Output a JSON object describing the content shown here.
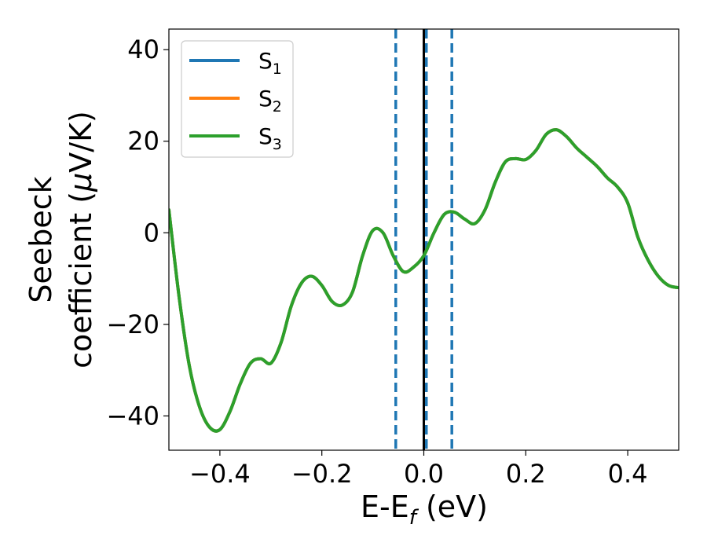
{
  "chart_data": {
    "type": "line",
    "title": "",
    "xlabel": {
      "main": "E-E",
      "sub": "f",
      "unit": " (eV)"
    },
    "ylabel": {
      "line1": "Seebeck",
      "line2_pre": "coefficient  (",
      "mu": "μ",
      "line2_post": "V/K)"
    },
    "xlim": [
      -0.5,
      0.5
    ],
    "ylim": [
      -47.5,
      44.5
    ],
    "xticks": [
      -0.4,
      -0.2,
      0.0,
      0.2,
      0.4
    ],
    "xtick_labels": [
      "−0.4",
      "−0.2",
      "0.0",
      "0.2",
      "0.4"
    ],
    "yticks": [
      -40,
      -20,
      0,
      20,
      40
    ],
    "ytick_labels": [
      "−40",
      "−20",
      "0",
      "20",
      "40"
    ],
    "grid": false,
    "legend_position": "top-left",
    "vlines": [
      {
        "x": -0.055,
        "style": "dashed",
        "color": "#1f77b4"
      },
      {
        "x": 0.055,
        "style": "dashed",
        "color": "#1f77b4"
      },
      {
        "x": 0.005,
        "style": "dashed",
        "color": "#1f77b4"
      },
      {
        "x": 0.0,
        "style": "solid",
        "color": "#000000"
      }
    ],
    "x": [
      -0.5,
      -0.48,
      -0.46,
      -0.44,
      -0.42,
      -0.4,
      -0.38,
      -0.36,
      -0.34,
      -0.32,
      -0.3,
      -0.28,
      -0.26,
      -0.24,
      -0.22,
      -0.2,
      -0.18,
      -0.16,
      -0.14,
      -0.12,
      -0.1,
      -0.08,
      -0.06,
      -0.04,
      -0.02,
      0.0,
      0.02,
      0.04,
      0.06,
      0.08,
      0.1,
      0.12,
      0.14,
      0.16,
      0.18,
      0.2,
      0.22,
      0.24,
      0.26,
      0.28,
      0.3,
      0.32,
      0.34,
      0.36,
      0.38,
      0.4,
      0.42,
      0.44,
      0.46,
      0.48,
      0.5
    ],
    "series": [
      {
        "name": "S",
        "sub": "1",
        "color": "#1f77b4",
        "values": [
          5,
          -14,
          -29,
          -38,
          -42.5,
          -43,
          -39,
          -33,
          -28.5,
          -27.5,
          -28.5,
          -24,
          -16,
          -11,
          -9.5,
          -11.5,
          -15,
          -15.8,
          -13,
          -5,
          0.5,
          0,
          -5,
          -8.5,
          -7.5,
          -5,
          0,
          4,
          4.5,
          3,
          2,
          5,
          11,
          15.5,
          16.2,
          16,
          18,
          21.5,
          22.5,
          21,
          18.5,
          16.5,
          14.5,
          12,
          10,
          6.5,
          -1,
          -6,
          -9.5,
          -11.5,
          -12
        ]
      },
      {
        "name": "S",
        "sub": "2",
        "color": "#ff7f0e",
        "values": [
          5,
          -14,
          -29,
          -38,
          -42.5,
          -43,
          -39,
          -33,
          -28.5,
          -27.5,
          -28.5,
          -24,
          -16,
          -11,
          -9.5,
          -11.5,
          -15,
          -15.8,
          -13,
          -5,
          0.5,
          0,
          -5,
          -8.5,
          -7.5,
          -5,
          0,
          4,
          4.5,
          3,
          2,
          5,
          11,
          15.5,
          16.2,
          16,
          18,
          21.5,
          22.5,
          21,
          18.5,
          16.5,
          14.5,
          12,
          10,
          6.5,
          -1,
          -6,
          -9.5,
          -11.5,
          -12
        ]
      },
      {
        "name": "S",
        "sub": "3",
        "color": "#2ca02c",
        "values": [
          5,
          -14,
          -29,
          -38,
          -42.5,
          -43,
          -39,
          -33,
          -28.5,
          -27.5,
          -28.5,
          -24,
          -16,
          -11,
          -9.5,
          -11.5,
          -15,
          -15.8,
          -13,
          -5,
          0.5,
          0,
          -5,
          -8.5,
          -7.5,
          -5,
          0,
          4,
          4.5,
          3,
          2,
          5,
          11,
          15.5,
          16.2,
          16,
          18,
          21.5,
          22.5,
          21,
          18.5,
          16.5,
          14.5,
          12,
          10,
          6.5,
          -1,
          -6,
          -9.5,
          -11.5,
          -12
        ]
      }
    ]
  }
}
